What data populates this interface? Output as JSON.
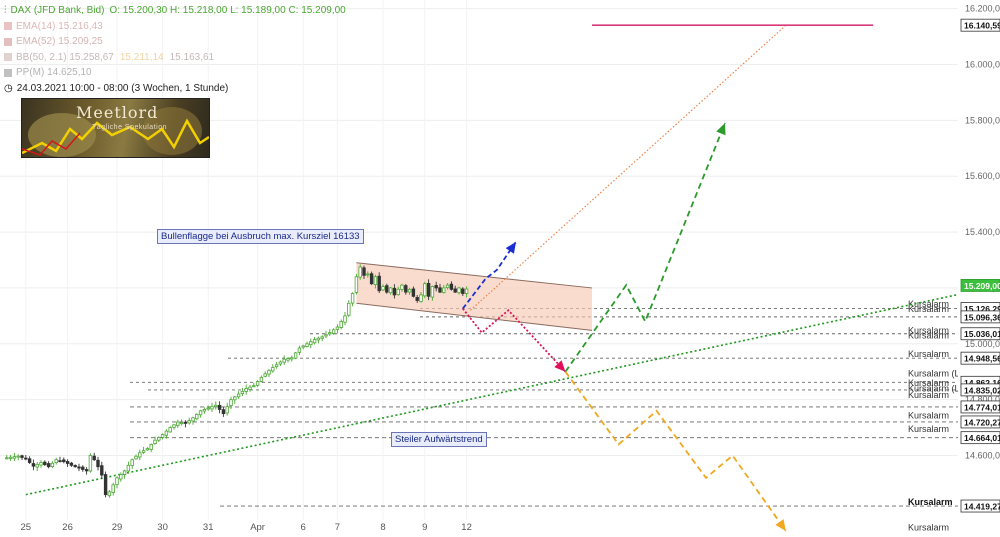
{
  "legend": {
    "instrument": "DAX (JFD Bank, Bid)",
    "ohlc": "O: 15.200,30  H: 15.218,00  L: 15.189,00  C: 15.209,00",
    "ema14": "EMA(14)  15.216,43",
    "ema52": "EMA(52)  15.209,25",
    "bb": "BB(50, 2.1)  15.258,67",
    "bb_mid": "15.211,14",
    "bb_low": "15.163,61",
    "pp": "PP(M)  14.625,10",
    "period": "24.03.2021 10:00 - 08:00   (3 Wochen, 1 Stunde)"
  },
  "logo": {
    "name": "Meetlord",
    "tagline": "Tägliche Spekulation"
  },
  "annotations": {
    "bull_flag": "Bullenflagge bei Ausbruch max. Kursziel 16133",
    "trend": "Steiler Aufwärtstrend"
  },
  "colors": {
    "up": "#4aa832",
    "down": "#333333",
    "trend": "#1e9a1e",
    "flag_fill": "#f7c9b6",
    "flag_edge": "#8a6a5e",
    "target": "#d93a7a",
    "blue_arrow": "#1a2fd0",
    "green_arrow": "#2a9a2a",
    "orange_arrow": "#f0a820",
    "red_path": "#e0105a",
    "projection": "#f07a3a"
  },
  "chart_data": {
    "type": "candlestick",
    "title": "DAX (JFD Bank, Bid)",
    "timeframe": "1 Stunde",
    "x_ticks": [
      "25",
      "26",
      "29",
      "30",
      "31",
      "Apr",
      "6",
      "7",
      "8",
      "9",
      "12"
    ],
    "ylim": [
      14380,
      16220
    ],
    "y_ticks": [
      14600,
      14800,
      15000,
      15200,
      15400,
      15600,
      15800,
      16000,
      16200
    ],
    "y_tick_labels": [
      "14.600,00",
      "14.800,00",
      "15.000,00",
      "15.200,00",
      "15.400,00",
      "15.600,00",
      "15.800,00",
      "16.000,00",
      "16.200,00"
    ],
    "price_path": [
      [
        0,
        14590
      ],
      [
        2,
        14594
      ],
      [
        4,
        14598
      ],
      [
        6,
        14588
      ],
      [
        8,
        14562
      ],
      [
        10,
        14575
      ],
      [
        12,
        14560
      ],
      [
        14,
        14585
      ],
      [
        16,
        14578
      ],
      [
        18,
        14565
      ],
      [
        20,
        14555
      ],
      [
        22,
        14545
      ],
      [
        23,
        14600
      ],
      [
        24,
        14585
      ],
      [
        25,
        14560
      ],
      [
        26,
        14530
      ],
      [
        27,
        14460
      ],
      [
        28,
        14470
      ],
      [
        30,
        14520
      ],
      [
        32,
        14545
      ],
      [
        34,
        14585
      ],
      [
        36,
        14610
      ],
      [
        38,
        14625
      ],
      [
        40,
        14655
      ],
      [
        42,
        14675
      ],
      [
        44,
        14700
      ],
      [
        46,
        14720
      ],
      [
        48,
        14715
      ],
      [
        50,
        14735
      ],
      [
        52,
        14760
      ],
      [
        54,
        14770
      ],
      [
        56,
        14780
      ],
      [
        58,
        14750
      ],
      [
        60,
        14800
      ],
      [
        62,
        14820
      ],
      [
        64,
        14840
      ],
      [
        66,
        14850
      ],
      [
        68,
        14880
      ],
      [
        70,
        14905
      ],
      [
        72,
        14925
      ],
      [
        74,
        14945
      ],
      [
        76,
        14950
      ],
      [
        78,
        14985
      ],
      [
        80,
        15000
      ],
      [
        82,
        15015
      ],
      [
        84,
        15025
      ],
      [
        86,
        15040
      ],
      [
        88,
        15060
      ],
      [
        90,
        15100
      ],
      [
        91,
        15145
      ],
      [
        92,
        15180
      ],
      [
        93,
        15240
      ],
      [
        94,
        15275
      ],
      [
        95,
        15245
      ],
      [
        96,
        15250
      ],
      [
        97,
        15215
      ],
      [
        98,
        15240
      ],
      [
        99,
        15190
      ],
      [
        100,
        15205
      ],
      [
        101,
        15185
      ],
      [
        102,
        15200
      ],
      [
        103,
        15175
      ],
      [
        104,
        15195
      ],
      [
        105,
        15210
      ],
      [
        106,
        15185
      ],
      [
        107,
        15195
      ],
      [
        108,
        15170
      ],
      [
        109,
        15155
      ],
      [
        110,
        15175
      ],
      [
        111,
        15215
      ],
      [
        112,
        15170
      ],
      [
        113,
        15205
      ],
      [
        114,
        15200
      ],
      [
        115,
        15185
      ],
      [
        116,
        15200
      ],
      [
        117,
        15210
      ],
      [
        118,
        15195
      ],
      [
        119,
        15185
      ],
      [
        120,
        15200
      ],
      [
        121,
        15180
      ],
      [
        122,
        15196
      ]
    ],
    "price_levels": [
      {
        "value": 16140.59,
        "label": "16.140,59"
      },
      {
        "value": 15209.0,
        "label": "15.209,00"
      },
      {
        "value": 15126.29,
        "label": "15.126,29"
      },
      {
        "value": 15096.36,
        "label": "15.096,36"
      },
      {
        "value": 15036.01,
        "label": "15.036,01"
      },
      {
        "value": 14948.56,
        "label": "14.948,56"
      },
      {
        "value": 14862.16,
        "label": "14.862,16"
      },
      {
        "value": 14835.02,
        "label": "14.835,02"
      },
      {
        "value": 14774.01,
        "label": "14.774,01"
      },
      {
        "value": 14720.27,
        "label": "14.720,27"
      },
      {
        "value": 14664.01,
        "label": "14.664,01"
      },
      {
        "value": 14419.27,
        "label": "14.419,27"
      }
    ],
    "alarm_labels": [
      {
        "value": 15145,
        "text": "Kursalarm"
      },
      {
        "value": 15127,
        "text": "Kursalarm"
      },
      {
        "value": 15050,
        "text": "Kursalarm"
      },
      {
        "value": 15032,
        "text": "Kursalarm"
      },
      {
        "value": 14965,
        "text": "Kursalarm"
      },
      {
        "value": 14895,
        "text": "Kursalarm (L&S)"
      },
      {
        "value": 14862,
        "text": "Kursalarm"
      },
      {
        "value": 14842,
        "text": "Kursalarm (L&S)"
      },
      {
        "value": 14818,
        "text": "Kursalarm"
      },
      {
        "value": 14745,
        "text": "Kursalarm"
      },
      {
        "value": 14697,
        "text": "Kursalarm"
      },
      {
        "value": 14435,
        "text": "Kursalarm"
      },
      {
        "value": 14345,
        "text": "Kursalarm"
      }
    ],
    "flag_channel": {
      "upper": [
        [
          93,
          15290
        ],
        [
          155,
          15200
        ]
      ],
      "lower": [
        [
          93,
          15145
        ],
        [
          155,
          15048
        ]
      ]
    },
    "trendline": [
      [
        6,
        14460
      ],
      [
        268,
        15225
      ]
    ],
    "target_line": {
      "from": 155,
      "to": 229,
      "value": 16140.59
    },
    "projection_line": [
      [
        123,
        15120
      ],
      [
        206,
        16140
      ]
    ],
    "projections": {
      "blue_breakout": [
        [
          121,
          15126
        ],
        [
          127,
          15233
        ],
        [
          130,
          15265
        ],
        [
          135,
          15365
        ]
      ],
      "red_pullback": [
        [
          121,
          15126
        ],
        [
          126,
          15040
        ],
        [
          133,
          15120
        ],
        [
          148,
          14900
        ]
      ],
      "green_rally": [
        [
          148,
          14900
        ],
        [
          164,
          15210
        ],
        [
          169,
          15080
        ],
        [
          190,
          15790
        ]
      ],
      "orange_decline": [
        [
          148,
          14900
        ],
        [
          162,
          14640
        ],
        [
          172,
          14760
        ],
        [
          185,
          14520
        ],
        [
          192,
          14600
        ],
        [
          206,
          14330
        ]
      ]
    }
  }
}
